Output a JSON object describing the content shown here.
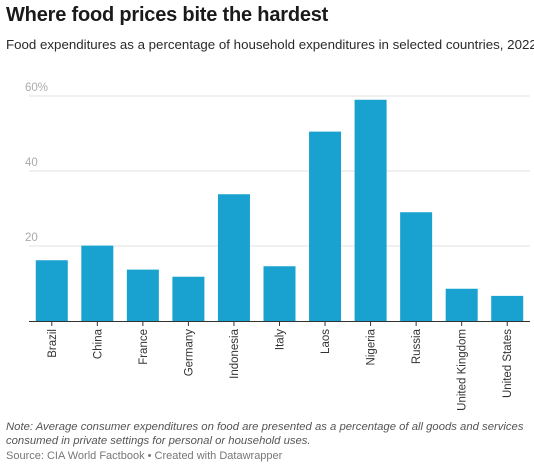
{
  "header": {
    "title": "Where food prices bite the hardest",
    "subtitle": "Food expenditures as a percentage of household expenditures in selected countries, 2022."
  },
  "chart_data": {
    "type": "bar",
    "categories": [
      "Brazil",
      "China",
      "France",
      "Germany",
      "Indonesia",
      "Italy",
      "Laos",
      "Nigeria",
      "Russia",
      "United Kingdom",
      "United States"
    ],
    "values": [
      16.2,
      20.1,
      13.7,
      11.8,
      33.8,
      14.6,
      50.5,
      59.0,
      29.0,
      8.6,
      6.7
    ],
    "yticks": [
      {
        "value": 20,
        "label": "20"
      },
      {
        "value": 40,
        "label": "40"
      },
      {
        "value": 60,
        "label": "60%"
      }
    ],
    "ylim": [
      0,
      60
    ],
    "grid": true,
    "bar_color": "#19a1cf",
    "gridline_color": "#e2e2e2",
    "tick_label_color": "#aaaaaa"
  },
  "footer": {
    "note": "Note: Average consumer expenditures on food are presented as a percentage of all goods and services consumed in private settings for personal or household uses.",
    "source": "Source: CIA World Factbook • Created with Datawrapper"
  }
}
